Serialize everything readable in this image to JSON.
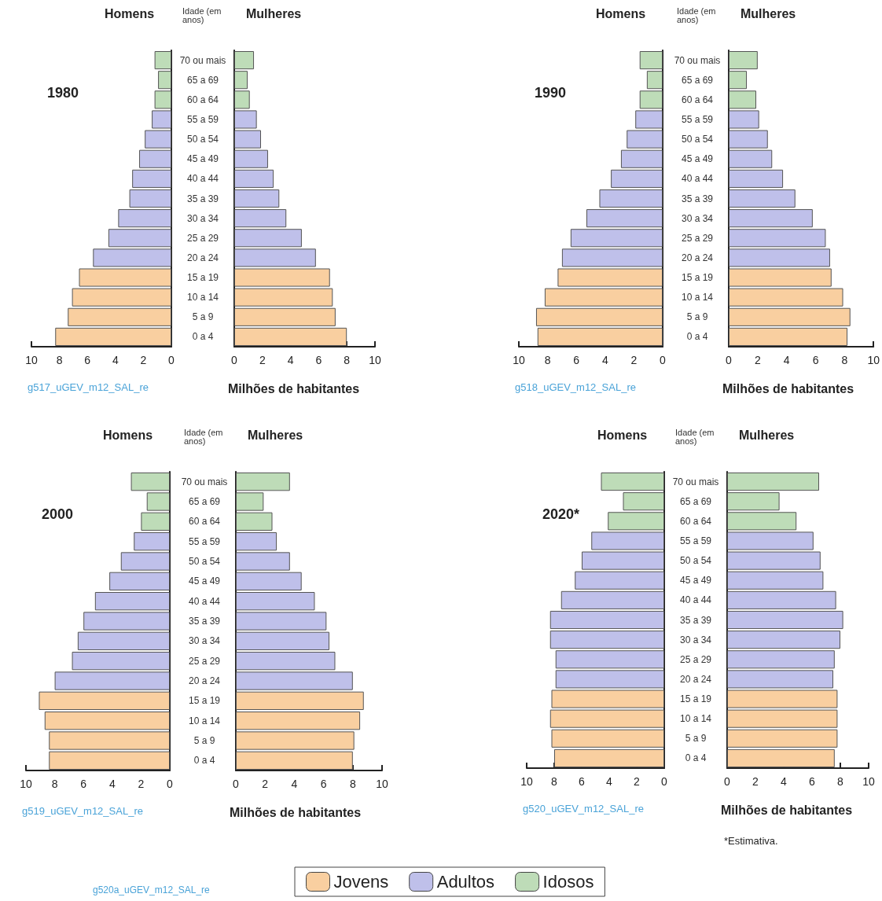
{
  "chart_data": [
    {
      "type": "bar",
      "orientation": "horizontal",
      "stacked": true,
      "title": "1980",
      "subtitle": "Homens",
      "annotations": [
        "g517_uGEV_m12_SAL_re"
      ],
      "tick_labels": "x",
      "xlim": [
        10,
        0
      ],
      "xticks": [
        0,
        2,
        4,
        6,
        8,
        10
      ],
      "categories": [
        "70 ou mais",
        "65 a 69",
        "60 a 64",
        "55 a 59",
        "50 a 54",
        "45 a 49",
        "40 a 44",
        "35 a 39",
        "30 a 34",
        "25 a 29",
        "20 a 24",
        "15 a 19",
        "10 a 14",
        "5 a 9",
        "0 a 4"
      ],
      "series": [
        {
          "color": "#f9cfa0",
          "values": [
            null,
            null,
            null,
            null,
            null,
            null,
            null,
            null,
            null,
            null,
            null,
            6.6,
            7.1,
            7.4,
            8.3
          ]
        },
        {
          "color": "#bfc0ea",
          "values": [
            null,
            null,
            null,
            1.4,
            1.9,
            2.3,
            2.8,
            3.0,
            3.8,
            4.5,
            5.6,
            null,
            null,
            null,
            null
          ]
        },
        {
          "color": "#bedcb8",
          "values": [
            1.2,
            0.95,
            1.2,
            null,
            null,
            null,
            null,
            null,
            null,
            null,
            null,
            null,
            null,
            null,
            null
          ]
        }
      ]
    },
    {
      "type": "bar",
      "orientation": "horizontal",
      "stacked": true,
      "subtitle": "Mulheres",
      "ylabel": "Idade (em anos)",
      "xlabel": "Milhões de habitantes",
      "xlim": [
        0,
        10
      ],
      "xticks": [
        0,
        2,
        4,
        6,
        8,
        10
      ],
      "categories": [
        "70 ou mais",
        "65 a 69",
        "60 a 64",
        "55 a 59",
        "50 a 54",
        "45 a 49",
        "40 a 44",
        "35 a 39",
        "30 a 34",
        "25 a 29",
        "20 a 24",
        "15 a 19",
        "10 a 14",
        "5 a 9",
        "0 a 4"
      ],
      "series": [
        {
          "color": "#f9cfa0",
          "values": [
            null,
            null,
            null,
            null,
            null,
            null,
            null,
            null,
            null,
            null,
            null,
            6.8,
            7.0,
            7.2,
            8.0
          ]
        },
        {
          "color": "#bfc0ea",
          "values": [
            null,
            null,
            null,
            1.6,
            1.9,
            2.4,
            2.8,
            3.2,
            3.7,
            4.8,
            5.8,
            null,
            null,
            null,
            null
          ]
        },
        {
          "color": "#bedcb8",
          "values": [
            1.4,
            0.95,
            1.1,
            null,
            null,
            null,
            null,
            null,
            null,
            null,
            null,
            null,
            null,
            null,
            null
          ]
        }
      ]
    },
    {
      "type": "bar",
      "orientation": "horizontal",
      "stacked": true,
      "title": "1990",
      "subtitle": "Homens",
      "annotations": [
        "g518_uGEV_m12_SAL_re"
      ],
      "tick_labels": "x",
      "xlim": [
        10,
        0
      ],
      "xticks": [
        0,
        2,
        4,
        6,
        8,
        10
      ],
      "categories": [
        "70 ou mais",
        "65 a 69",
        "60 a 64",
        "55 a 59",
        "50 a 54",
        "45 a 49",
        "40 a 44",
        "35 a 39",
        "30 a 34",
        "25 a 29",
        "20 a 24",
        "15 a 19",
        "10 a 14",
        "5 a 9",
        "0 a 4"
      ],
      "series": [
        {
          "color": "#f9cfa0",
          "values": [
            null,
            null,
            null,
            null,
            null,
            null,
            null,
            null,
            null,
            null,
            null,
            7.3,
            8.2,
            8.8,
            8.7
          ]
        },
        {
          "color": "#bfc0ea",
          "values": [
            null,
            null,
            null,
            1.9,
            2.5,
            2.9,
            3.6,
            4.4,
            5.3,
            6.4,
            7.0,
            null,
            null,
            null,
            null
          ]
        },
        {
          "color": "#bedcb8",
          "values": [
            1.6,
            1.1,
            1.6,
            null,
            null,
            null,
            null,
            null,
            null,
            null,
            null,
            null,
            null,
            null,
            null
          ]
        }
      ]
    },
    {
      "type": "bar",
      "orientation": "horizontal",
      "stacked": true,
      "subtitle": "Mulheres",
      "ylabel": "Idade (em anos)",
      "xlabel": "Milhões de habitantes",
      "xlim": [
        0,
        10
      ],
      "xticks": [
        0,
        2,
        4,
        6,
        8,
        10
      ],
      "categories": [
        "70 ou mais",
        "65 a 69",
        "60 a 64",
        "55 a 59",
        "50 a 54",
        "45 a 49",
        "40 a 44",
        "35 a 39",
        "30 a 34",
        "25 a 29",
        "20 a 24",
        "15 a 19",
        "10 a 14",
        "5 a 9",
        "0 a 4"
      ],
      "series": [
        {
          "color": "#f9cfa0",
          "values": [
            null,
            null,
            null,
            null,
            null,
            null,
            null,
            null,
            null,
            null,
            null,
            7.1,
            7.9,
            8.4,
            8.2
          ]
        },
        {
          "color": "#bfc0ea",
          "values": [
            null,
            null,
            null,
            2.1,
            2.7,
            3.0,
            3.75,
            4.6,
            5.8,
            6.7,
            7.0,
            null,
            null,
            null,
            null
          ]
        },
        {
          "color": "#bedcb8",
          "values": [
            2.0,
            1.25,
            1.9,
            null,
            null,
            null,
            null,
            null,
            null,
            null,
            null,
            null,
            null,
            null,
            null
          ]
        }
      ]
    },
    {
      "type": "bar",
      "orientation": "horizontal",
      "stacked": true,
      "title": "2000",
      "subtitle": "Homens",
      "annotations": [
        "g519_uGEV_m12_SAL_re"
      ],
      "tick_labels": "x",
      "xlim": [
        10,
        0
      ],
      "xticks": [
        0,
        2,
        4,
        6,
        8,
        10
      ],
      "categories": [
        "70 ou mais",
        "65 a 69",
        "60 a 64",
        "55 a 59",
        "50 a 54",
        "45 a 49",
        "40 a 44",
        "35 a 39",
        "30 a 34",
        "25 a 29",
        "20 a 24",
        "15 a 19",
        "10 a 14",
        "5 a 9",
        "0 a 4"
      ],
      "series": [
        {
          "color": "#f9cfa0",
          "values": [
            null,
            null,
            null,
            null,
            null,
            null,
            null,
            null,
            null,
            null,
            null,
            9.1,
            8.7,
            8.4,
            8.4
          ]
        },
        {
          "color": "#bfc0ea",
          "values": [
            null,
            null,
            null,
            2.5,
            3.4,
            4.2,
            5.2,
            6.0,
            6.4,
            6.8,
            8.0,
            null,
            null,
            null,
            null
          ]
        },
        {
          "color": "#bedcb8",
          "values": [
            2.7,
            1.6,
            2.0,
            null,
            null,
            null,
            null,
            null,
            null,
            null,
            null,
            null,
            null,
            null,
            null
          ]
        }
      ]
    },
    {
      "type": "bar",
      "orientation": "horizontal",
      "stacked": true,
      "subtitle": "Mulheres",
      "ylabel": "Idade (em anos)",
      "xlabel": "Milhões de habitantes",
      "xlim": [
        0,
        10
      ],
      "xticks": [
        0,
        2,
        4,
        6,
        8,
        10
      ],
      "categories": [
        "70 ou mais",
        "65 a 69",
        "60 a 64",
        "55 a 59",
        "50 a 54",
        "45 a 49",
        "40 a 44",
        "35 a 39",
        "30 a 34",
        "25 a 29",
        "20 a 24",
        "15 a 19",
        "10 a 14",
        "5 a 9",
        "0 a 4"
      ],
      "series": [
        {
          "color": "#f9cfa0",
          "values": [
            null,
            null,
            null,
            null,
            null,
            null,
            null,
            null,
            null,
            null,
            null,
            8.75,
            8.5,
            8.1,
            8.0
          ]
        },
        {
          "color": "#bfc0ea",
          "values": [
            null,
            null,
            null,
            2.8,
            3.7,
            4.5,
            5.4,
            6.2,
            6.4,
            6.8,
            8.0,
            null,
            null,
            null,
            null
          ]
        },
        {
          "color": "#bedcb8",
          "values": [
            3.7,
            1.9,
            2.5,
            null,
            null,
            null,
            null,
            null,
            null,
            null,
            null,
            null,
            null,
            null,
            null
          ]
        }
      ]
    },
    {
      "type": "bar",
      "orientation": "horizontal",
      "stacked": true,
      "title": "2020*",
      "subtitle": "Homens",
      "annotations": [
        "g520_uGEV_m12_SAL_re"
      ],
      "tick_labels": "x",
      "xlim": [
        10,
        0
      ],
      "xticks": [
        0,
        2,
        4,
        6,
        8,
        10
      ],
      "categories": [
        "70 ou mais",
        "65 a 69",
        "60 a 64",
        "55 a 59",
        "50 a 54",
        "45 a 49",
        "40 a 44",
        "35 a 39",
        "30 a 34",
        "25 a 29",
        "20 a 24",
        "15 a 19",
        "10 a 14",
        "5 a 9",
        "0 a 4"
      ],
      "series": [
        {
          "color": "#f9cfa0",
          "values": [
            null,
            null,
            null,
            null,
            null,
            null,
            null,
            null,
            null,
            null,
            null,
            8.2,
            8.3,
            8.2,
            8.0
          ]
        },
        {
          "color": "#bfc0ea",
          "values": [
            null,
            null,
            null,
            5.3,
            6.0,
            6.5,
            7.5,
            8.3,
            8.3,
            7.9,
            7.9,
            null,
            null,
            null,
            null
          ]
        },
        {
          "color": "#bedcb8",
          "values": [
            4.6,
            3.0,
            4.1,
            null,
            null,
            null,
            null,
            null,
            null,
            null,
            null,
            null,
            null,
            null,
            null
          ]
        }
      ]
    },
    {
      "type": "bar",
      "orientation": "horizontal",
      "stacked": true,
      "subtitle": "Mulheres",
      "ylabel": "Idade (em anos)",
      "xlabel": "Milhões de habitantes",
      "annotations": [
        "*Estimativa.",
        "g520a_uGEV_m12_SAL_re"
      ],
      "legend": "bottom",
      "xlim": [
        0,
        10
      ],
      "xticks": [
        0,
        2,
        4,
        6,
        8,
        10
      ],
      "categories": [
        "70 ou mais",
        "65 a 69",
        "60 a 64",
        "55 a 59",
        "50 a 54",
        "45 a 49",
        "40 a 44",
        "35 a 39",
        "30 a 34",
        "25 a 29",
        "20 a 24",
        "15 a 19",
        "10 a 14",
        "5 a 9",
        "0 a 4"
      ],
      "series": [
        {
          "name": "Jovens",
          "color": "#f9cfa0",
          "values": [
            null,
            null,
            null,
            null,
            null,
            null,
            null,
            null,
            null,
            null,
            null,
            7.8,
            7.8,
            7.8,
            7.6
          ]
        },
        {
          "name": "Adultos",
          "color": "#bfc0ea",
          "values": [
            null,
            null,
            null,
            6.1,
            6.6,
            6.8,
            7.7,
            8.2,
            8.0,
            7.6,
            7.5,
            null,
            null,
            null,
            null
          ]
        },
        {
          "name": "Idosos",
          "color": "#bedcb8",
          "values": [
            6.5,
            3.7,
            4.9,
            null,
            null,
            null,
            null,
            null,
            null,
            null,
            null,
            null,
            null,
            null,
            null
          ]
        }
      ]
    }
  ]
}
